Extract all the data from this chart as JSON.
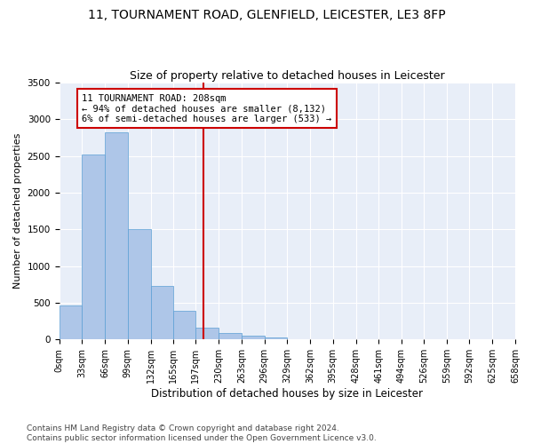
{
  "title1": "11, TOURNAMENT ROAD, GLENFIELD, LEICESTER, LE3 8FP",
  "title2": "Size of property relative to detached houses in Leicester",
  "xlabel": "Distribution of detached houses by size in Leicester",
  "ylabel": "Number of detached properties",
  "bin_edges": [
    0,
    33,
    66,
    99,
    132,
    165,
    197,
    230,
    263,
    296,
    329,
    362,
    395,
    428,
    461,
    494,
    526,
    559,
    592,
    625,
    658
  ],
  "bin_labels": [
    "0sqm",
    "33sqm",
    "66sqm",
    "99sqm",
    "132sqm",
    "165sqm",
    "197sqm",
    "230sqm",
    "263sqm",
    "296sqm",
    "329sqm",
    "362sqm",
    "395sqm",
    "428sqm",
    "461sqm",
    "494sqm",
    "526sqm",
    "559sqm",
    "592sqm",
    "625sqm",
    "658sqm"
  ],
  "bar_heights": [
    460,
    2520,
    2820,
    1510,
    730,
    390,
    160,
    90,
    55,
    30,
    10,
    5,
    3,
    0,
    0,
    0,
    0,
    0,
    0,
    0
  ],
  "bar_color": "#aec6e8",
  "bar_edge_color": "#5a9fd4",
  "property_line_x": 208,
  "property_line_color": "#cc0000",
  "annotation_text": "11 TOURNAMENT ROAD: 208sqm\n← 94% of detached houses are smaller (8,132)\n6% of semi-detached houses are larger (533) →",
  "annotation_box_color": "#cc0000",
  "ylim": [
    0,
    3500
  ],
  "yticks": [
    0,
    500,
    1000,
    1500,
    2000,
    2500,
    3000,
    3500
  ],
  "bg_color": "#e8eef8",
  "footer_text": "Contains HM Land Registry data © Crown copyright and database right 2024.\nContains public sector information licensed under the Open Government Licence v3.0.",
  "title1_fontsize": 10,
  "title2_fontsize": 9,
  "xlabel_fontsize": 8.5,
  "ylabel_fontsize": 8,
  "annotation_fontsize": 7.5,
  "footer_fontsize": 6.5,
  "tick_fontsize": 7,
  "ytick_fontsize": 7.5
}
